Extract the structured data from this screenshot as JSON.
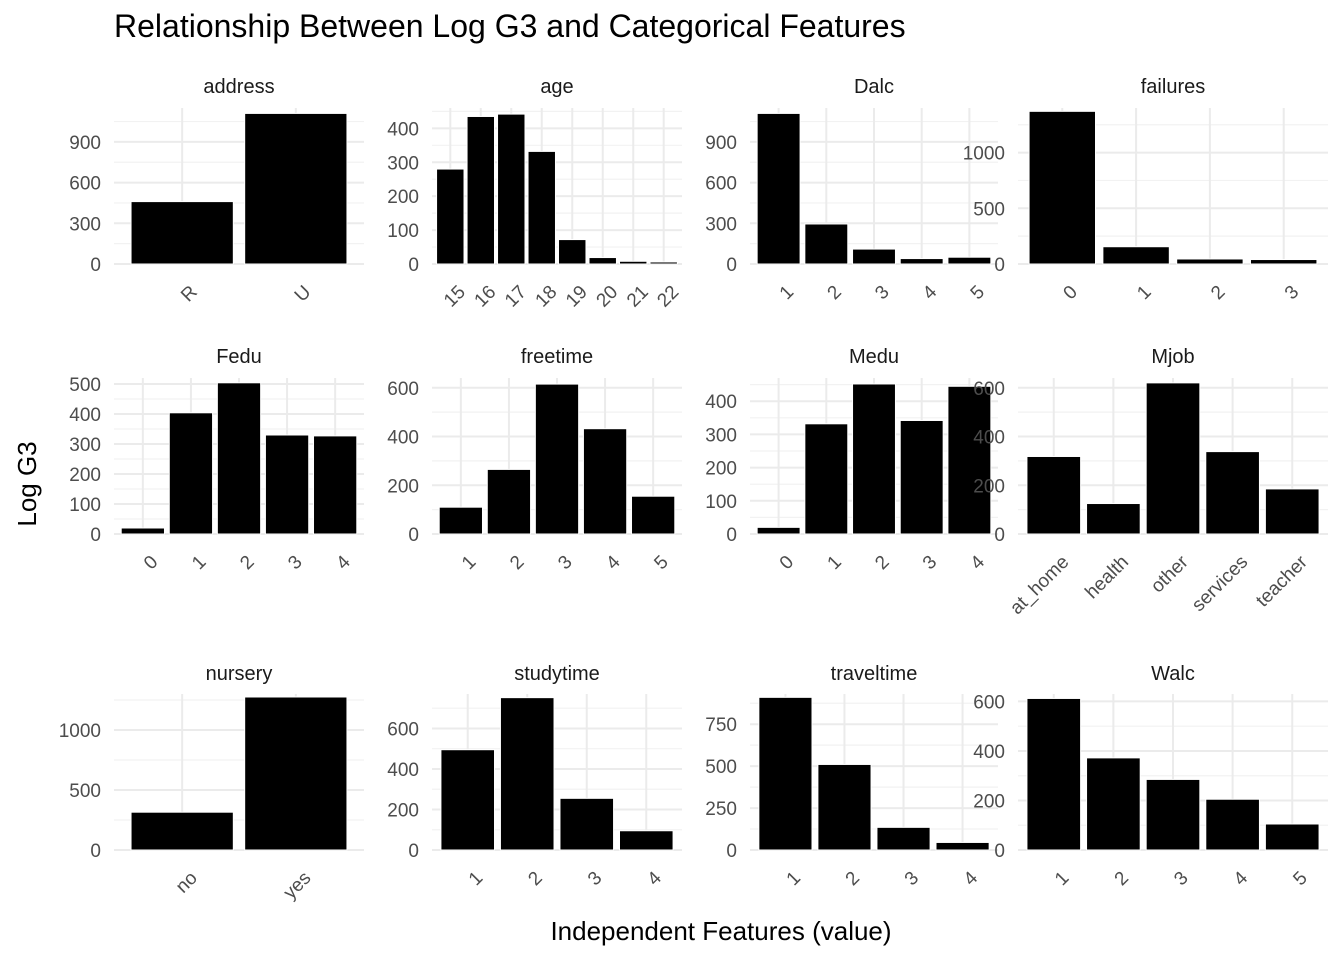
{
  "title": "Relationship Between Log G3 and Categorical Features",
  "chart_data": {
    "type": "bar",
    "title": "Relationship Between Log G3 and Categorical Features",
    "xlabel": "Independent Features (value)",
    "ylabel": "Log G3",
    "grid": true,
    "panels": [
      {
        "name": "address",
        "categories": [
          "R",
          "U"
        ],
        "values": [
          460,
          1110
        ],
        "ylim": [
          0,
          1150
        ],
        "yticks": [
          0,
          300,
          600,
          900
        ],
        "rotate_x": true
      },
      {
        "name": "age",
        "categories": [
          "15",
          "16",
          "17",
          "18",
          "19",
          "20",
          "21",
          "22"
        ],
        "values": [
          280,
          435,
          442,
          332,
          72,
          19,
          8,
          6
        ],
        "ylim": [
          0,
          460
        ],
        "yticks": [
          0,
          100,
          200,
          300,
          400
        ],
        "rotate_x": true
      },
      {
        "name": "Dalc",
        "categories": [
          "1",
          "2",
          "3",
          "4",
          "5"
        ],
        "values": [
          1110,
          295,
          110,
          40,
          50
        ],
        "ylim": [
          0,
          1150
        ],
        "yticks": [
          0,
          300,
          600,
          900
        ],
        "rotate_x": true
      },
      {
        "name": "failures",
        "categories": [
          "0",
          "1",
          "2",
          "3"
        ],
        "values": [
          1370,
          155,
          45,
          40
        ],
        "ylim": [
          0,
          1400
        ],
        "yticks": [
          0,
          500,
          1000
        ],
        "rotate_x": true
      },
      {
        "name": "Fedu",
        "categories": [
          "0",
          "1",
          "2",
          "3",
          "4"
        ],
        "values": [
          20,
          404,
          504,
          330,
          327
        ],
        "ylim": [
          0,
          520
        ],
        "yticks": [
          0,
          100,
          200,
          300,
          400,
          500
        ],
        "rotate_x": true
      },
      {
        "name": "freetime",
        "categories": [
          "1",
          "2",
          "3",
          "4",
          "5"
        ],
        "values": [
          110,
          265,
          615,
          432,
          155
        ],
        "ylim": [
          0,
          640
        ],
        "yticks": [
          0,
          200,
          400,
          600
        ],
        "rotate_x": true
      },
      {
        "name": "Medu",
        "categories": [
          "0",
          "1",
          "2",
          "3",
          "4"
        ],
        "values": [
          20,
          332,
          452,
          342,
          445
        ],
        "ylim": [
          0,
          470
        ],
        "yticks": [
          0,
          100,
          200,
          300,
          400
        ],
        "rotate_x": true
      },
      {
        "name": "Mjob",
        "categories": [
          "at_home",
          "health",
          "other",
          "services",
          "teacher"
        ],
        "values": [
          318,
          125,
          620,
          338,
          185
        ],
        "ylim": [
          0,
          640
        ],
        "yticks": [
          0,
          200,
          400,
          600
        ],
        "rotate_x": true
      },
      {
        "name": "nursery",
        "categories": [
          "no",
          "yes"
        ],
        "values": [
          315,
          1275
        ],
        "ylim": [
          0,
          1300
        ],
        "yticks": [
          0,
          500,
          1000
        ],
        "rotate_x": true
      },
      {
        "name": "studytime",
        "categories": [
          "1",
          "2",
          "3",
          "4"
        ],
        "values": [
          495,
          752,
          255,
          95
        ],
        "ylim": [
          0,
          770
        ],
        "yticks": [
          0,
          200,
          400,
          600
        ],
        "rotate_x": true
      },
      {
        "name": "traveltime",
        "categories": [
          "1",
          "2",
          "3",
          "4"
        ],
        "values": [
          910,
          510,
          135,
          45
        ],
        "ylim": [
          0,
          930
        ],
        "yticks": [
          0,
          250,
          500,
          750
        ],
        "rotate_x": true
      },
      {
        "name": "Walc",
        "categories": [
          "1",
          "2",
          "3",
          "4",
          "5"
        ],
        "values": [
          612,
          372,
          285,
          205,
          105
        ],
        "ylim": [
          0,
          630
        ],
        "yticks": [
          0,
          200,
          400,
          600
        ],
        "rotate_x": true
      }
    ]
  }
}
